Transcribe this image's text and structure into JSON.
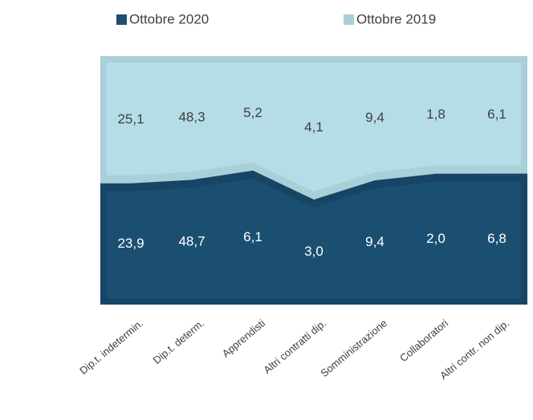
{
  "chart_data": {
    "type": "area",
    "stacking": "percent",
    "categories": [
      "Dip.t. indetermin.",
      "Dip.t. determ.",
      "Apprendisti",
      "Altri contratti dip.",
      "Somministrazione",
      "Collaboratori",
      "Altri contr. non dip."
    ],
    "series": [
      {
        "name": "Ottobre 2020",
        "color": "#1b4f72",
        "values": [
          23.9,
          48.7,
          6.1,
          3.0,
          9.4,
          2.0,
          6.8
        ],
        "value_labels": [
          "23,9",
          "48,7",
          "6,1",
          "3,0",
          "9,4",
          "2,0",
          "6,8"
        ]
      },
      {
        "name": "Ottobre 2019",
        "color": "#b5dde7",
        "values": [
          25.1,
          48.3,
          5.2,
          4.1,
          9.4,
          1.8,
          6.1
        ],
        "value_labels": [
          "25,1",
          "48,3",
          "5,2",
          "4,1",
          "9,4",
          "1,8",
          "6,1"
        ]
      }
    ],
    "legend": "top"
  }
}
